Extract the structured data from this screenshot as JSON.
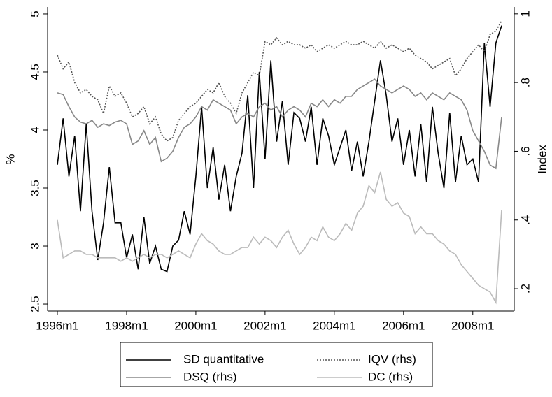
{
  "chart_data": {
    "type": "line",
    "y_label": "%",
    "y2_label": "Index",
    "x": [
      "1996m1",
      "1996m3",
      "1996m5",
      "1996m7",
      "1996m9",
      "1996m11",
      "1997m1",
      "1997m3",
      "1997m5",
      "1997m7",
      "1997m9",
      "1997m11",
      "1998m1",
      "1998m3",
      "1998m5",
      "1998m7",
      "1998m9",
      "1998m11",
      "1999m1",
      "1999m3",
      "1999m5",
      "1999m7",
      "1999m9",
      "1999m11",
      "2000m1",
      "2000m3",
      "2000m5",
      "2000m7",
      "2000m9",
      "2000m11",
      "2001m1",
      "2001m3",
      "2001m5",
      "2001m7",
      "2001m9",
      "2001m11",
      "2002m1",
      "2002m3",
      "2002m5",
      "2002m7",
      "2002m9",
      "2002m11",
      "2003m1",
      "2003m3",
      "2003m5",
      "2003m7",
      "2003m9",
      "2003m11",
      "2004m1",
      "2004m3",
      "2004m5",
      "2004m7",
      "2004m9",
      "2004m11",
      "2005m1",
      "2005m3",
      "2005m5",
      "2005m7",
      "2005m9",
      "2005m11",
      "2006m1",
      "2006m3",
      "2006m5",
      "2006m7",
      "2006m9",
      "2006m11",
      "2007m1",
      "2007m3",
      "2007m5",
      "2007m7",
      "2007m9",
      "2007m11",
      "2008m1",
      "2008m3",
      "2008m5",
      "2008m7",
      "2008m9",
      "2008m11"
    ],
    "xticks": [
      "1996m1",
      "1998m1",
      "2000m1",
      "2002m1",
      "2004m1",
      "2006m1",
      "2008m1"
    ],
    "ylim": [
      2.44,
      5.06
    ],
    "yticks": [
      2.5,
      3,
      3.5,
      4,
      4.5,
      5
    ],
    "y2lim": [
      0.135,
      1.02
    ],
    "y2ticks": [
      {
        "value": 0.2,
        "label": ".2"
      },
      {
        "value": 0.4,
        "label": ".4"
      },
      {
        "value": 0.6,
        "label": ".6"
      },
      {
        "value": 0.8,
        "label": ".8"
      },
      1
    ],
    "series": [
      {
        "name": "SD quantitative",
        "color": "#000000",
        "dash": false,
        "values": [
          3.7,
          4.1,
          3.6,
          3.95,
          3.3,
          4.05,
          3.3,
          2.88,
          3.2,
          3.68,
          3.2,
          3.2,
          2.9,
          3.1,
          2.8,
          3.25,
          2.85,
          3.0,
          2.8,
          2.78,
          3.0,
          3.05,
          3.3,
          3.1,
          3.6,
          4.2,
          3.5,
          3.85,
          3.4,
          3.7,
          3.3,
          3.6,
          3.8,
          4.3,
          3.5,
          4.5,
          3.75,
          4.6,
          3.9,
          4.25,
          3.7,
          4.15,
          4.1,
          3.9,
          4.2,
          3.7,
          4.1,
          3.95,
          3.7,
          3.85,
          4.0,
          3.65,
          3.9,
          3.6,
          3.9,
          4.25,
          4.6,
          4.3,
          3.9,
          4.1,
          3.7,
          4.0,
          3.6,
          4.05,
          3.55,
          4.2,
          3.8,
          3.5,
          4.15,
          3.55,
          3.95,
          3.7,
          3.75,
          3.55,
          4.75,
          4.2,
          4.75,
          4.9
        ]
      },
      {
        "name": "IQV (rhs)",
        "color": "#555555",
        "dash": true,
        "axis": "y2",
        "values": [
          0.88,
          0.84,
          0.86,
          0.8,
          0.77,
          0.78,
          0.76,
          0.75,
          0.71,
          0.79,
          0.76,
          0.77,
          0.74,
          0.7,
          0.71,
          0.73,
          0.68,
          0.7,
          0.65,
          0.63,
          0.64,
          0.69,
          0.71,
          0.73,
          0.74,
          0.76,
          0.78,
          0.77,
          0.8,
          0.76,
          0.74,
          0.71,
          0.77,
          0.8,
          0.83,
          0.82,
          0.92,
          0.91,
          0.93,
          0.91,
          0.92,
          0.91,
          0.91,
          0.9,
          0.91,
          0.89,
          0.9,
          0.91,
          0.9,
          0.91,
          0.92,
          0.91,
          0.91,
          0.92,
          0.91,
          0.9,
          0.92,
          0.9,
          0.91,
          0.9,
          0.89,
          0.9,
          0.88,
          0.87,
          0.86,
          0.84,
          0.85,
          0.86,
          0.87,
          0.82,
          0.84,
          0.87,
          0.89,
          0.91,
          0.89,
          0.94,
          0.95,
          0.98
        ]
      },
      {
        "name": "DSQ (rhs)",
        "color": "#888888",
        "dash": false,
        "axis": "y2",
        "values": [
          0.77,
          0.765,
          0.73,
          0.7,
          0.685,
          0.68,
          0.69,
          0.67,
          0.68,
          0.675,
          0.685,
          0.69,
          0.68,
          0.62,
          0.63,
          0.66,
          0.62,
          0.64,
          0.57,
          0.58,
          0.6,
          0.64,
          0.67,
          0.68,
          0.7,
          0.73,
          0.72,
          0.75,
          0.74,
          0.73,
          0.72,
          0.68,
          0.7,
          0.71,
          0.7,
          0.73,
          0.74,
          0.72,
          0.73,
          0.7,
          0.72,
          0.73,
          0.72,
          0.7,
          0.74,
          0.73,
          0.75,
          0.73,
          0.75,
          0.74,
          0.76,
          0.76,
          0.78,
          0.79,
          0.8,
          0.81,
          0.79,
          0.78,
          0.77,
          0.78,
          0.79,
          0.78,
          0.76,
          0.77,
          0.75,
          0.77,
          0.76,
          0.75,
          0.77,
          0.76,
          0.75,
          0.72,
          0.66,
          0.63,
          0.6,
          0.56,
          0.55,
          0.7
        ]
      },
      {
        "name": "DC (rhs)",
        "color": "#bbbbbb",
        "dash": false,
        "axis": "y2",
        "values": [
          0.4,
          0.29,
          0.3,
          0.31,
          0.31,
          0.3,
          0.3,
          0.29,
          0.29,
          0.29,
          0.29,
          0.28,
          0.29,
          0.28,
          0.29,
          0.3,
          0.29,
          0.3,
          0.3,
          0.29,
          0.3,
          0.31,
          0.3,
          0.29,
          0.33,
          0.36,
          0.34,
          0.33,
          0.31,
          0.3,
          0.3,
          0.31,
          0.32,
          0.32,
          0.35,
          0.33,
          0.35,
          0.34,
          0.32,
          0.35,
          0.37,
          0.33,
          0.3,
          0.32,
          0.35,
          0.34,
          0.38,
          0.35,
          0.34,
          0.36,
          0.39,
          0.37,
          0.42,
          0.44,
          0.5,
          0.48,
          0.54,
          0.46,
          0.44,
          0.45,
          0.42,
          0.41,
          0.36,
          0.38,
          0.36,
          0.36,
          0.34,
          0.33,
          0.31,
          0.3,
          0.27,
          0.25,
          0.23,
          0.21,
          0.2,
          0.19,
          0.16,
          0.43
        ]
      }
    ]
  }
}
